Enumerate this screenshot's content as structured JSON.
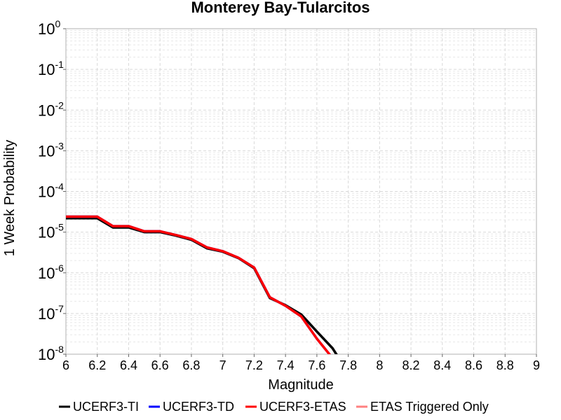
{
  "chart_data": {
    "type": "line",
    "title": "Monterey Bay-Tularcitos",
    "xlabel": "Magnitude",
    "ylabel": "1 Week Probability",
    "xlim": [
      6,
      9
    ],
    "ylim": [
      1e-08,
      1
    ],
    "y_scale": "log",
    "grid": true,
    "legend_position": "bottom",
    "x_ticks": [
      "6",
      "6.2",
      "6.4",
      "6.6",
      "6.8",
      "7",
      "7.2",
      "7.4",
      "7.6",
      "7.8",
      "8",
      "8.2",
      "8.4",
      "8.6",
      "8.8",
      "9"
    ],
    "y_ticks": [
      {
        "value": 1,
        "base": "10",
        "exp": "0"
      },
      {
        "value": 0.1,
        "base": "10",
        "exp": "-1"
      },
      {
        "value": 0.01,
        "base": "10",
        "exp": "-2"
      },
      {
        "value": 0.001,
        "base": "10",
        "exp": "-3"
      },
      {
        "value": 0.0001,
        "base": "10",
        "exp": "-4"
      },
      {
        "value": 1e-05,
        "base": "10",
        "exp": "-5"
      },
      {
        "value": 1e-06,
        "base": "10",
        "exp": "-6"
      },
      {
        "value": 1e-07,
        "base": "10",
        "exp": "-7"
      },
      {
        "value": 1e-08,
        "base": "10",
        "exp": "-8"
      }
    ],
    "series": [
      {
        "name": "UCERF3-TI",
        "color": "#000000",
        "points": [
          [
            6.0,
            2.2e-05
          ],
          [
            6.2,
            2.2e-05
          ],
          [
            6.3,
            1.3e-05
          ],
          [
            6.4,
            1.3e-05
          ],
          [
            6.5,
            1e-05
          ],
          [
            6.6,
            1e-05
          ],
          [
            6.7,
            8.2e-06
          ],
          [
            6.8,
            6.5e-06
          ],
          [
            6.9,
            4e-06
          ],
          [
            7.0,
            3.3e-06
          ],
          [
            7.1,
            2.3e-06
          ],
          [
            7.2,
            1.3e-06
          ],
          [
            7.3,
            2.4e-07
          ],
          [
            7.4,
            1.6e-07
          ],
          [
            7.5,
            9.5e-08
          ],
          [
            7.6,
            3.6e-08
          ],
          [
            7.7,
            1.4e-08
          ],
          [
            7.74,
            8e-09
          ]
        ]
      },
      {
        "name": "UCERF3-TD",
        "color": "#0000ff",
        "points": [
          [
            6.0,
            2.4e-05
          ],
          [
            6.2,
            2.4e-05
          ],
          [
            6.3,
            1.4e-05
          ],
          [
            6.4,
            1.4e-05
          ],
          [
            6.5,
            1.05e-05
          ],
          [
            6.6,
            1.05e-05
          ],
          [
            6.7,
            8.5e-06
          ],
          [
            6.8,
            6.8e-06
          ],
          [
            6.9,
            4.2e-06
          ],
          [
            7.0,
            3.4e-06
          ],
          [
            7.1,
            2.35e-06
          ],
          [
            7.2,
            1.35e-06
          ],
          [
            7.3,
            2.5e-07
          ],
          [
            7.4,
            1.55e-07
          ],
          [
            7.5,
            8.5e-08
          ],
          [
            7.6,
            2.4e-08
          ],
          [
            7.7,
            8e-09
          ]
        ]
      },
      {
        "name": "UCERF3-ETAS",
        "color": "#ff0000",
        "points": [
          [
            6.0,
            2.4e-05
          ],
          [
            6.2,
            2.4e-05
          ],
          [
            6.3,
            1.4e-05
          ],
          [
            6.4,
            1.4e-05
          ],
          [
            6.5,
            1.05e-05
          ],
          [
            6.6,
            1.05e-05
          ],
          [
            6.7,
            8.5e-06
          ],
          [
            6.8,
            6.8e-06
          ],
          [
            6.9,
            4.2e-06
          ],
          [
            7.0,
            3.4e-06
          ],
          [
            7.1,
            2.35e-06
          ],
          [
            7.2,
            1.35e-06
          ],
          [
            7.3,
            2.5e-07
          ],
          [
            7.4,
            1.55e-07
          ],
          [
            7.5,
            8.5e-08
          ],
          [
            7.6,
            2.4e-08
          ],
          [
            7.7,
            8e-09
          ]
        ]
      },
      {
        "name": "ETAS Triggered Only",
        "color": "#ff8080",
        "points": []
      }
    ]
  }
}
